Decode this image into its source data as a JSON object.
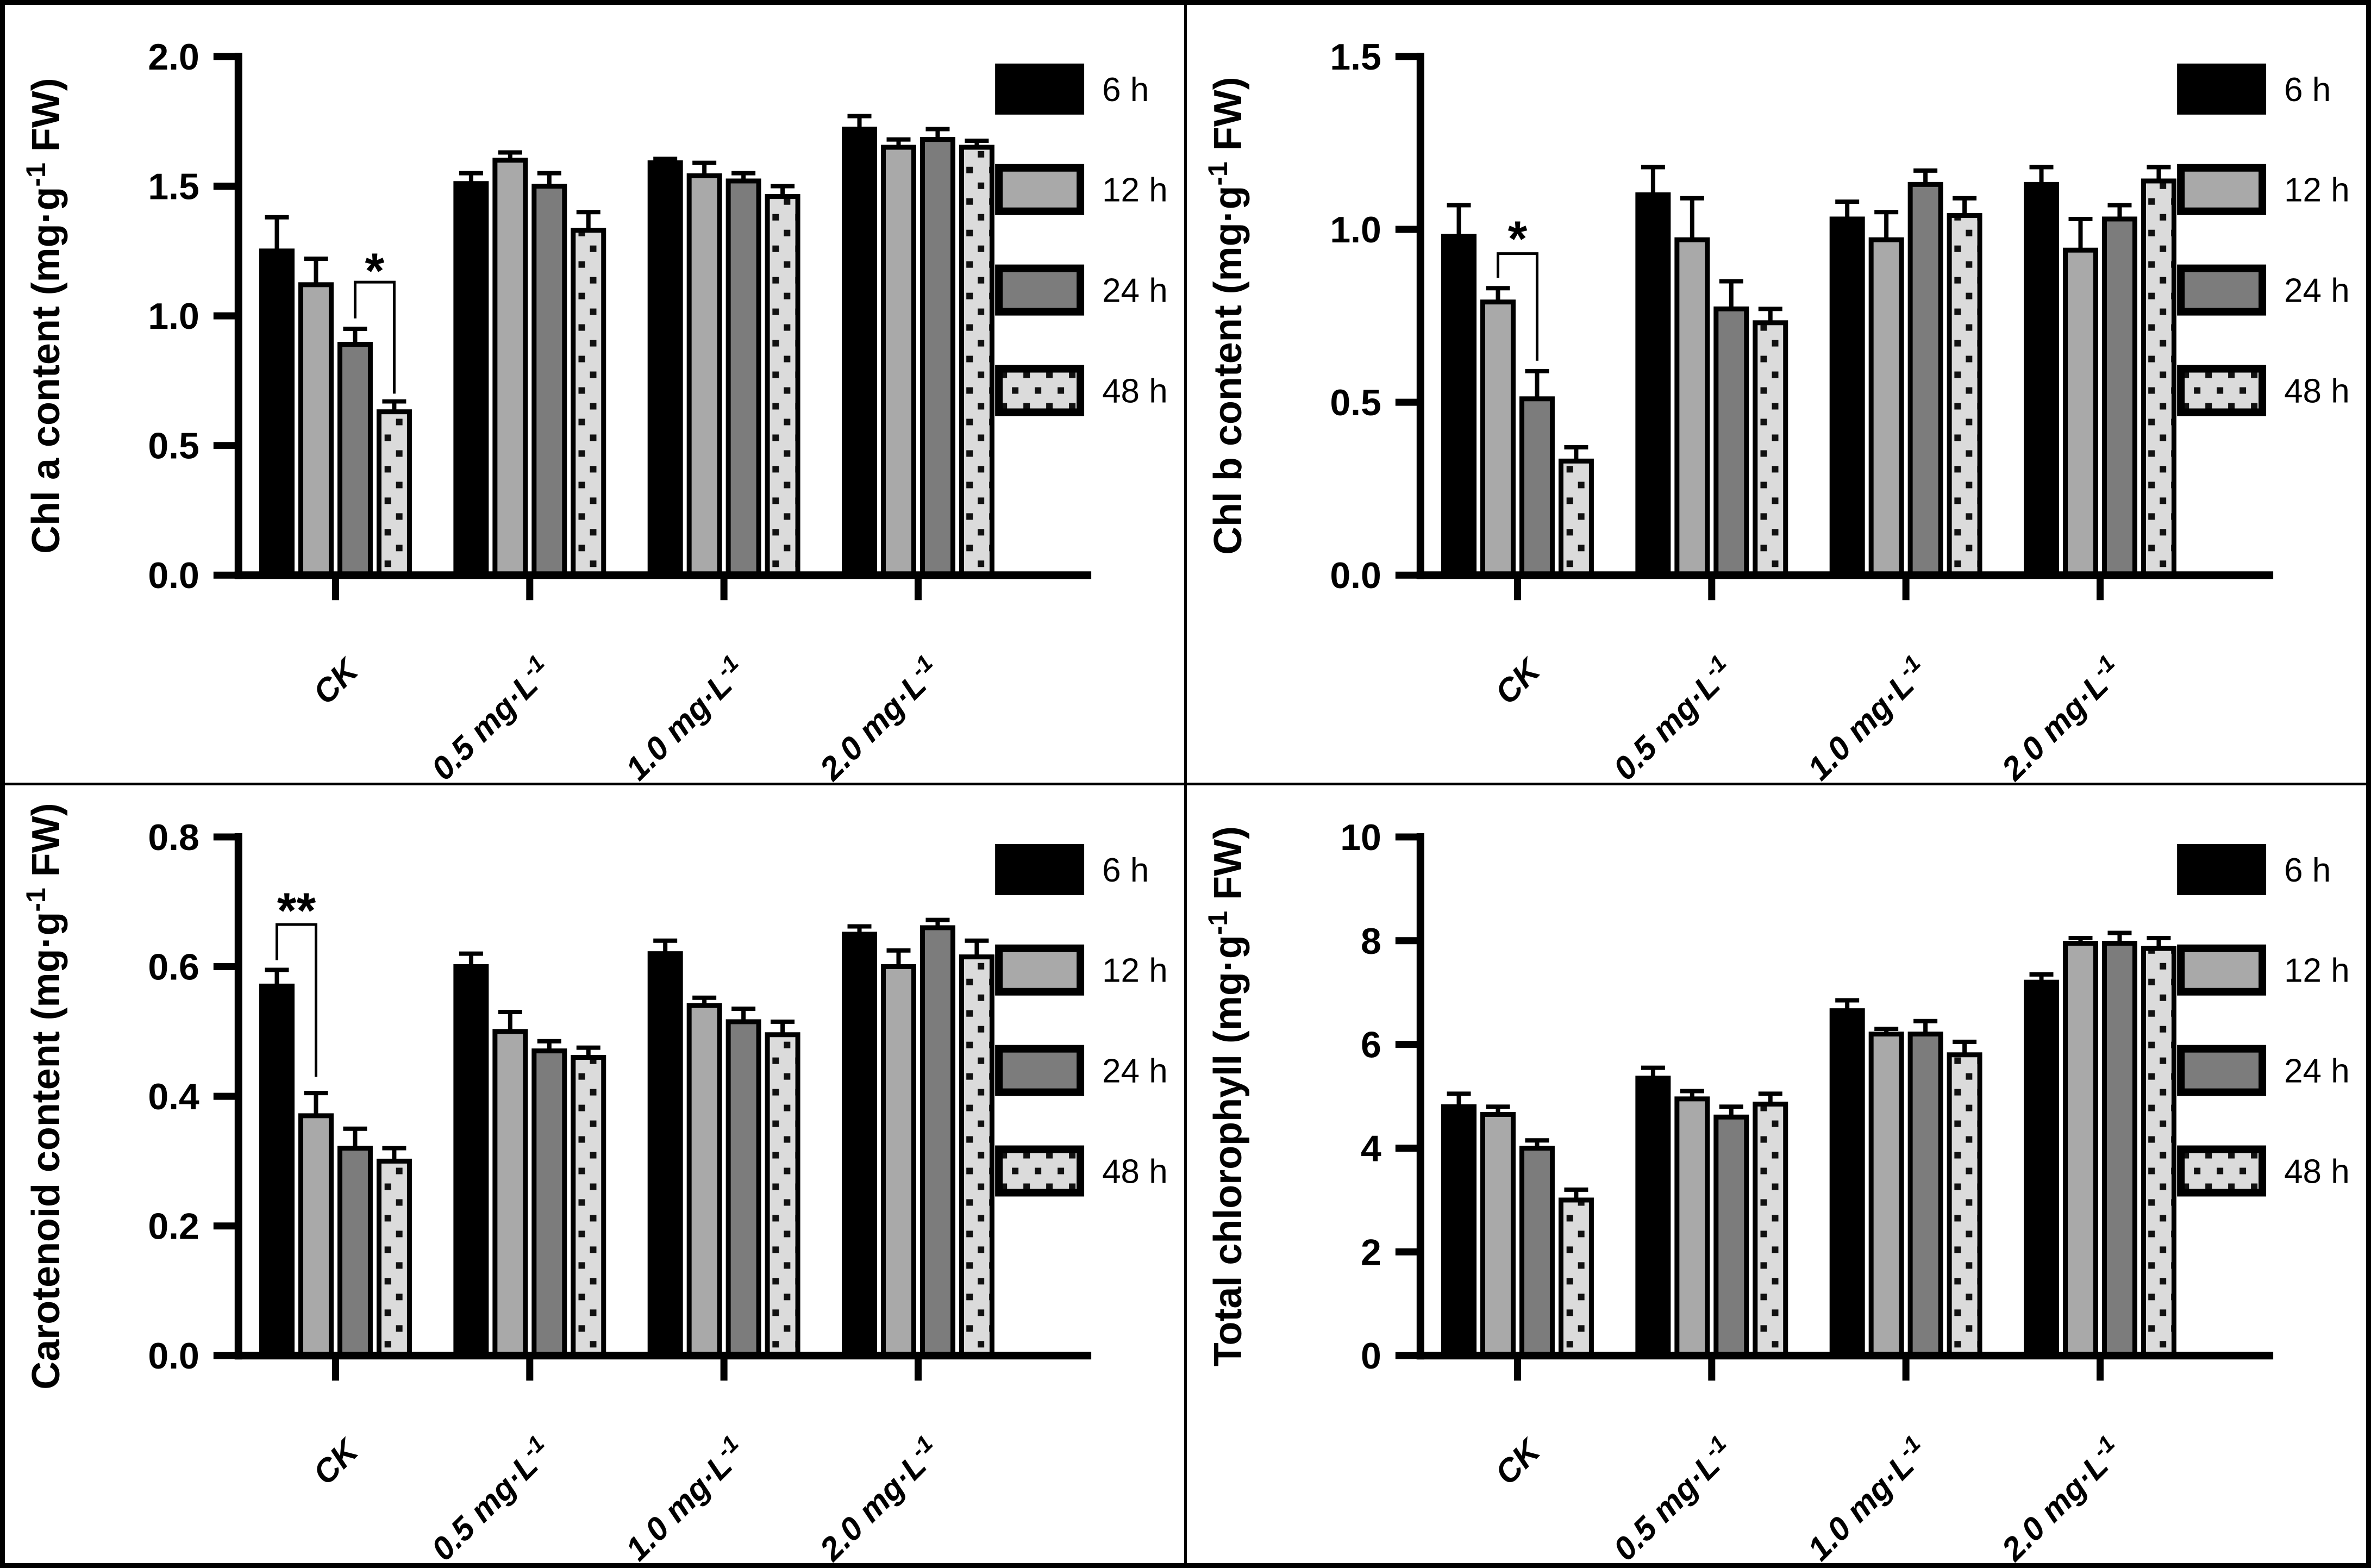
{
  "figure": {
    "background": "#ffffff",
    "frame_color": "#000000",
    "rows": 2,
    "cols": 2
  },
  "legend": {
    "position": "top-right",
    "entries": [
      {
        "label": "6 h",
        "fill": "#000000",
        "pattern": "solid"
      },
      {
        "label": "12 h",
        "fill": "#a9a9a9",
        "pattern": "solid"
      },
      {
        "label": "24 h",
        "fill": "#7c7c7c",
        "pattern": "solid"
      },
      {
        "label": "48 h",
        "fill": "#dbdbdb",
        "pattern": "dots",
        "dot_color": "#111111"
      }
    ]
  },
  "chart_data": [
    {
      "id": "chl-a",
      "type": "bar",
      "ylabel": "Chl a content (mg·g⁻¹ FW)",
      "xlabel": "",
      "ylim": [
        0,
        2.0
      ],
      "grid": false,
      "yticks": [
        {
          "v": 0.0,
          "label": "0.0"
        },
        {
          "v": 0.5,
          "label": "0.5"
        },
        {
          "v": 1.0,
          "label": "1.0"
        },
        {
          "v": 1.5,
          "label": "1.5"
        },
        {
          "v": 2.0,
          "label": "2.0"
        }
      ],
      "categories": [
        "CK",
        "0.5 mg·L⁻¹",
        "1.0 mg·L⁻¹",
        "2.0 mg·L⁻¹"
      ],
      "series": [
        {
          "name": "6 h",
          "values": [
            1.25,
            1.51,
            1.59,
            1.72
          ],
          "errors": [
            0.13,
            0.04,
            0.015,
            0.05
          ]
        },
        {
          "name": "12 h",
          "values": [
            1.12,
            1.6,
            1.54,
            1.65
          ],
          "errors": [
            0.1,
            0.03,
            0.05,
            0.03
          ]
        },
        {
          "name": "24 h",
          "values": [
            0.89,
            1.5,
            1.52,
            1.68
          ],
          "errors": [
            0.06,
            0.05,
            0.03,
            0.04
          ]
        },
        {
          "name": "48 h",
          "values": [
            0.63,
            1.33,
            1.46,
            1.65
          ],
          "errors": [
            0.04,
            0.07,
            0.04,
            0.025
          ]
        }
      ],
      "significance": [
        {
          "label": "*",
          "group": 0,
          "from_series": 2,
          "to_series": 3,
          "y_from": 0.99,
          "y_top": 1.13,
          "y_to": 0.7,
          "label_y": 1.17
        }
      ],
      "legend": true
    },
    {
      "id": "chl-b",
      "type": "bar",
      "ylabel": "Chl b content (mg·g⁻¹ FW)",
      "xlabel": "",
      "ylim": [
        0,
        1.5
      ],
      "grid": false,
      "yticks": [
        {
          "v": 0.0,
          "label": "0.0"
        },
        {
          "v": 0.5,
          "label": "0.5"
        },
        {
          "v": 1.0,
          "label": "1.0"
        },
        {
          "v": 1.5,
          "label": "1.5"
        }
      ],
      "categories": [
        "CK",
        "0.5 mg·L⁻¹",
        "1.0 mg·L⁻¹",
        "2.0 mg·L⁻¹"
      ],
      "series": [
        {
          "name": "6 h",
          "values": [
            0.98,
            1.1,
            1.03,
            1.13
          ],
          "errors": [
            0.09,
            0.08,
            0.05,
            0.05
          ]
        },
        {
          "name": "12 h",
          "values": [
            0.79,
            0.97,
            0.97,
            0.94
          ],
          "errors": [
            0.04,
            0.12,
            0.08,
            0.09
          ]
        },
        {
          "name": "24 h",
          "values": [
            0.51,
            0.77,
            1.13,
            1.03
          ],
          "errors": [
            0.08,
            0.08,
            0.04,
            0.04
          ]
        },
        {
          "name": "48 h",
          "values": [
            0.33,
            0.73,
            1.04,
            1.14
          ],
          "errors": [
            0.04,
            0.04,
            0.05,
            0.04
          ]
        }
      ],
      "significance": [
        {
          "label": "*",
          "group": 0,
          "from_series": 1,
          "to_series": 2,
          "y_from": 0.86,
          "y_top": 0.93,
          "y_to": 0.62,
          "label_y": 0.97
        }
      ],
      "legend": true
    },
    {
      "id": "carotenoid",
      "type": "bar",
      "ylabel": "Carotenoid content (mg·g⁻¹ FW)",
      "xlabel": "",
      "ylim": [
        0,
        0.8
      ],
      "grid": false,
      "yticks": [
        {
          "v": 0.0,
          "label": "0.0"
        },
        {
          "v": 0.2,
          "label": "0.2"
        },
        {
          "v": 0.4,
          "label": "0.4"
        },
        {
          "v": 0.6,
          "label": "0.6"
        },
        {
          "v": 0.8,
          "label": "0.8"
        }
      ],
      "categories": [
        "CK",
        "0.5 mg·L⁻¹",
        "1.0 mg·L⁻¹",
        "2.0 mg·L⁻¹"
      ],
      "series": [
        {
          "name": "6 h",
          "values": [
            0.57,
            0.6,
            0.62,
            0.65
          ],
          "errors": [
            0.025,
            0.02,
            0.02,
            0.012
          ]
        },
        {
          "name": "12 h",
          "values": [
            0.37,
            0.5,
            0.54,
            0.6
          ],
          "errors": [
            0.035,
            0.03,
            0.012,
            0.025
          ]
        },
        {
          "name": "24 h",
          "values": [
            0.32,
            0.47,
            0.515,
            0.66
          ],
          "errors": [
            0.03,
            0.015,
            0.02,
            0.012
          ]
        },
        {
          "name": "48 h",
          "values": [
            0.3,
            0.46,
            0.495,
            0.615
          ],
          "errors": [
            0.02,
            0.015,
            0.02,
            0.025
          ]
        }
      ],
      "significance": [
        {
          "label": "**",
          "group": 0,
          "from_series": 0,
          "to_series": 1,
          "y_from": 0.61,
          "y_top": 0.665,
          "y_to": 0.43,
          "label_y": 0.685
        }
      ],
      "legend": true
    },
    {
      "id": "total-chlorophyll",
      "type": "bar",
      "ylabel": "Total chlorophyll (mg·g⁻¹ FW)",
      "xlabel": "",
      "ylim": [
        0,
        10
      ],
      "grid": false,
      "yticks": [
        {
          "v": 0,
          "label": "0"
        },
        {
          "v": 2,
          "label": "2"
        },
        {
          "v": 4,
          "label": "4"
        },
        {
          "v": 6,
          "label": "6"
        },
        {
          "v": 8,
          "label": "8"
        },
        {
          "v": 10,
          "label": "10"
        }
      ],
      "categories": [
        "CK",
        "0.5 mg·L⁻¹",
        "1.0 mg·L⁻¹",
        "2.0 mg·L⁻¹"
      ],
      "series": [
        {
          "name": "6 h",
          "values": [
            4.8,
            5.35,
            6.65,
            7.2
          ],
          "errors": [
            0.25,
            0.2,
            0.2,
            0.15
          ]
        },
        {
          "name": "12 h",
          "values": [
            4.65,
            4.95,
            6.2,
            7.95
          ],
          "errors": [
            0.15,
            0.15,
            0.1,
            0.1
          ]
        },
        {
          "name": "24 h",
          "values": [
            4.0,
            4.6,
            6.2,
            7.95
          ],
          "errors": [
            0.15,
            0.2,
            0.25,
            0.2
          ]
        },
        {
          "name": "48 h",
          "values": [
            3.0,
            4.85,
            5.8,
            7.85
          ],
          "errors": [
            0.2,
            0.2,
            0.25,
            0.2
          ]
        }
      ],
      "significance": [],
      "legend": true
    }
  ]
}
